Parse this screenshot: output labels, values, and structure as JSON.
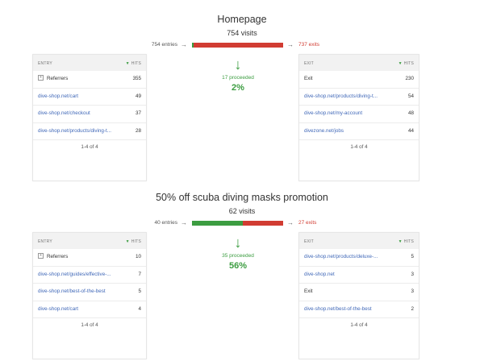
{
  "steps": [
    {
      "title": "Homepage",
      "visits": "754 visits",
      "entries": "754 entries",
      "exits": "737 exits",
      "proceed_fraction": 0.02,
      "proceeded": "17 proceeded",
      "percent": "2%",
      "entry_table": {
        "col_label": "ENTRY",
        "col_hits": "HITS",
        "rows": [
          {
            "label": "Referrers",
            "value": "355"
          },
          {
            "label": "dive-shop.net/cart",
            "value": "49"
          },
          {
            "label": "dive-shop.net/checkout",
            "value": "37"
          },
          {
            "label": "dive-shop.net/products/diving-t...",
            "value": "28"
          }
        ],
        "pager": "1-4 of 4"
      },
      "exit_table": {
        "col_label": "EXIT",
        "col_hits": "HITS",
        "rows": [
          {
            "label": "Exit",
            "value": "230"
          },
          {
            "label": "dive-shop.net/products/diving-t...",
            "value": "54"
          },
          {
            "label": "dive-shop.net/my-account",
            "value": "48"
          },
          {
            "label": "divezone.net/jobs",
            "value": "44"
          }
        ],
        "pager": "1-4 of 4"
      }
    },
    {
      "title": "50% off scuba diving masks promotion",
      "visits": "62 visits",
      "entries": "40 entries",
      "exits": "27 exits",
      "proceed_fraction": 0.56,
      "proceeded": "35 proceeded",
      "percent": "56%",
      "entry_table": {
        "col_label": "ENTRY",
        "col_hits": "HITS",
        "rows": [
          {
            "label": "Referrers",
            "value": "10"
          },
          {
            "label": "dive-shop.net/guides/effective-...",
            "value": "7"
          },
          {
            "label": "dive-shop.net/best-of-the-best",
            "value": "5"
          },
          {
            "label": "dive-shop.net/cart",
            "value": "4"
          }
        ],
        "pager": "1-4 of 4"
      },
      "exit_table": {
        "col_label": "EXIT",
        "col_hits": "HITS",
        "rows": [
          {
            "label": "dive-shop.net/products/deluxe-...",
            "value": "5"
          },
          {
            "label": "dive-shop.net",
            "value": "3"
          },
          {
            "label": "Exit",
            "value": "3"
          },
          {
            "label": "dive-shop.net/best-of-the-best",
            "value": "2"
          }
        ],
        "pager": "1-4 of 4"
      }
    }
  ],
  "icons": {
    "arrow_right": "→",
    "arrow_down": "↓",
    "sort_down": "▼",
    "expand": "+"
  },
  "colors": {
    "proceed": "#3c9d41",
    "exit": "#d13c32",
    "link": "#4068b8"
  }
}
